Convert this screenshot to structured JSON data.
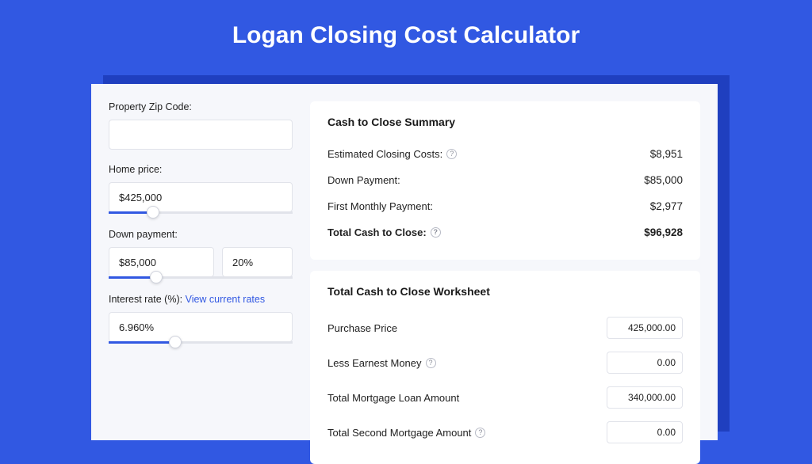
{
  "colors": {
    "page_bg": "#3158e2",
    "shadow": "#1f3fbf",
    "card_bg": "#f6f7fb",
    "panel_bg": "#ffffff",
    "border": "#e1e3ea",
    "accent": "#3158e2",
    "text": "#1a1a1a"
  },
  "header": {
    "title": "Logan Closing Cost Calculator"
  },
  "inputs": {
    "zip": {
      "label": "Property Zip Code:",
      "value": ""
    },
    "home_price": {
      "label": "Home price:",
      "value": "$425,000",
      "slider_pct": 24
    },
    "down_payment": {
      "label": "Down payment:",
      "value": "$85,000",
      "pct_value": "20%",
      "slider_pct": 26
    },
    "interest_rate": {
      "label": "Interest rate (%):",
      "link": "View current rates",
      "value": "6.960%",
      "slider_pct": 36
    }
  },
  "summary": {
    "title": "Cash to Close Summary",
    "rows": [
      {
        "label": "Estimated Closing Costs:",
        "help": true,
        "value": "$8,951",
        "bold": false
      },
      {
        "label": "Down Payment:",
        "help": false,
        "value": "$85,000",
        "bold": false
      },
      {
        "label": "First Monthly Payment:",
        "help": false,
        "value": "$2,977",
        "bold": false
      },
      {
        "label": "Total Cash to Close:",
        "help": true,
        "value": "$96,928",
        "bold": true
      }
    ]
  },
  "worksheet": {
    "title": "Total Cash to Close Worksheet",
    "rows": [
      {
        "label": "Purchase Price",
        "help": false,
        "value": "425,000.00"
      },
      {
        "label": "Less Earnest Money",
        "help": true,
        "value": "0.00"
      },
      {
        "label": "Total Mortgage Loan Amount",
        "help": false,
        "value": "340,000.00"
      },
      {
        "label": "Total Second Mortgage Amount",
        "help": true,
        "value": "0.00"
      }
    ]
  }
}
